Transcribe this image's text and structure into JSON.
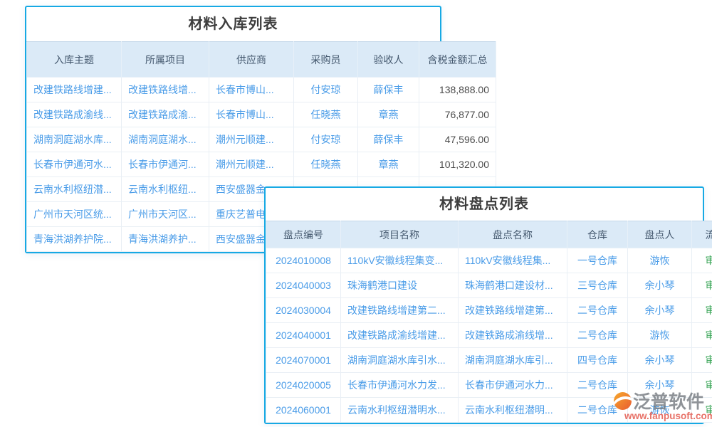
{
  "colors": {
    "accent_border": "#16a9e4",
    "header_bg": "#dbeaf7",
    "link_blue": "#4a9ce8",
    "status_green": "#37a455",
    "amount_text": "#4b4b4b",
    "watermark_gray": "#70757b",
    "watermark_red": "#df3a2b",
    "logo_orange": "#f6a21c",
    "logo_red": "#e84e20"
  },
  "inbound_table": {
    "title": "材料入库列表",
    "columns": [
      {
        "id": "subject",
        "label": "入库主题"
      },
      {
        "id": "project",
        "label": "所属项目"
      },
      {
        "id": "supplier",
        "label": "供应商"
      },
      {
        "id": "purchaser",
        "label": "采购员"
      },
      {
        "id": "inspector",
        "label": "验收人"
      },
      {
        "id": "amount",
        "label": "含税金额汇总"
      }
    ],
    "rows": [
      [
        "改建铁路线增建...",
        "改建铁路线增...",
        "长春市博山...",
        "付安琼",
        "薛保丰",
        "138,888.00"
      ],
      [
        "改建铁路成渝线...",
        "改建铁路成渝...",
        "长春市博山...",
        "任晓燕",
        "章燕",
        "76,877.00"
      ],
      [
        "湖南洞庭湖水库...",
        "湖南洞庭湖水...",
        "潮州元顺建...",
        "付安琼",
        "薛保丰",
        "47,596.00"
      ],
      [
        "长春市伊通河水...",
        "长春市伊通河...",
        "潮州元顺建...",
        "任晓燕",
        "章燕",
        "101,320.00"
      ],
      [
        "云南水利枢纽潜...",
        "云南水利枢纽...",
        "西安盛器金...",
        "",
        "",
        ""
      ],
      [
        "广州市天河区统...",
        "广州市天河区...",
        "重庆艺普电...",
        "",
        "",
        ""
      ],
      [
        "青海洪湖养护院...",
        "青海洪湖养护...",
        "西安盛器金...",
        "",
        "",
        ""
      ]
    ]
  },
  "inventory_table": {
    "title": "材料盘点列表",
    "columns": [
      {
        "id": "code",
        "label": "盘点编号"
      },
      {
        "id": "project-name",
        "label": "项目名称"
      },
      {
        "id": "inventory-name",
        "label": "盘点名称"
      },
      {
        "id": "warehouse",
        "label": "仓库"
      },
      {
        "id": "counter",
        "label": "盘点人"
      },
      {
        "id": "status",
        "label": "流程状态"
      }
    ],
    "rows": [
      [
        "2024010008",
        "110kV安徽线程集变...",
        "110kV安徽线程集...",
        "一号仓库",
        "游恢",
        "审批通过"
      ],
      [
        "2024040003",
        "珠海鹤港口建设",
        "珠海鹤港口建设材...",
        "三号仓库",
        "余小琴",
        "审批通过"
      ],
      [
        "2024030004",
        "改建铁路线增建第二...",
        "改建铁路线增建第...",
        "二号仓库",
        "余小琴",
        "审批通过"
      ],
      [
        "2024040001",
        "改建铁路成渝线增建...",
        "改建铁路成渝线增...",
        "二号仓库",
        "游恢",
        "审批通过"
      ],
      [
        "2024070001",
        "湖南洞庭湖水库引水...",
        "湖南洞庭湖水库引...",
        "四号仓库",
        "余小琴",
        "审批通过"
      ],
      [
        "2024020005",
        "长春市伊通河水力发...",
        "长春市伊通河水力...",
        "二号仓库",
        "余小琴",
        "审批通过"
      ],
      [
        "2024060001",
        "云南水利枢纽潜明水...",
        "云南水利枢纽潜明...",
        "二号仓库",
        "游恢",
        "审批通过"
      ]
    ]
  },
  "watermark": {
    "brand": "泛普软件",
    "url": "www.fanpusoft.com"
  }
}
